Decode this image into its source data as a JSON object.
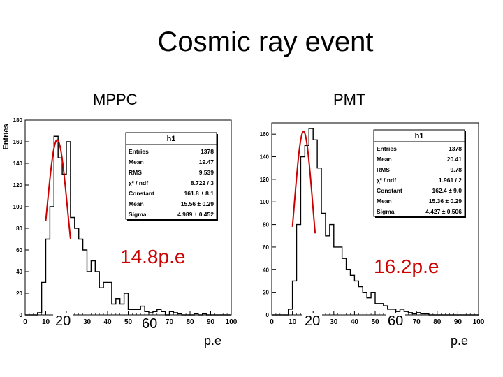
{
  "title": "Cosmic ray event",
  "panels": [
    {
      "label": "MPPC",
      "annotation": "14.8p.e",
      "unit": "p.e",
      "overlay_ticks": [
        "20",
        "60"
      ],
      "stats": {
        "name": "h1",
        "rows": [
          [
            "Entries",
            "1378"
          ],
          [
            "Mean",
            "19.47"
          ],
          [
            "RMS",
            "9.539"
          ],
          [
            "χ² / ndf",
            "8.722 / 3"
          ],
          [
            "Constant",
            "161.8 ± 8.1"
          ],
          [
            "Mean",
            "15.56 ± 0.29"
          ],
          [
            "Sigma",
            "4.989 ± 0.452"
          ]
        ]
      }
    },
    {
      "label": "PMT",
      "annotation": "16.2p.e",
      "unit": "p.e",
      "overlay_ticks": [
        "20",
        "60"
      ],
      "stats": {
        "name": "h1",
        "rows": [
          [
            "Entries",
            "1378"
          ],
          [
            "Mean",
            "20.41"
          ],
          [
            "RMS",
            "9.78"
          ],
          [
            "χ² / ndf",
            "1.961 / 2"
          ],
          [
            "Constant",
            "162.4 ± 9.0"
          ],
          [
            "Mean",
            "15.36 ± 0.29"
          ],
          [
            "Sigma",
            "4.427 ± 0.506"
          ]
        ]
      }
    }
  ],
  "chart_data": [
    {
      "type": "histogram",
      "title": "MPPC",
      "ylabel": "Entries",
      "xlim": [
        0,
        100
      ],
      "ylim": [
        0,
        180
      ],
      "bin_width": 2,
      "xticks": [
        0,
        10,
        20,
        30,
        40,
        50,
        60,
        70,
        80,
        90,
        100
      ],
      "yticks": [
        0,
        20,
        40,
        60,
        80,
        100,
        120,
        140,
        160,
        180
      ],
      "values": [
        0,
        0,
        0,
        2,
        30,
        70,
        100,
        165,
        145,
        130,
        160,
        90,
        80,
        70,
        60,
        40,
        50,
        40,
        25,
        30,
        30,
        10,
        15,
        10,
        20,
        5,
        5,
        5,
        8,
        3,
        2,
        3,
        5,
        3,
        0,
        3,
        2,
        1,
        0,
        0,
        0,
        1,
        0,
        1,
        0,
        0,
        0,
        0,
        0,
        0
      ],
      "fit": {
        "type": "gaussian",
        "constant": 161.8,
        "mean": 15.56,
        "sigma": 4.989,
        "range": [
          10,
          22
        ],
        "color": "#cc0000"
      }
    },
    {
      "type": "histogram",
      "title": "PMT",
      "ylabel": "",
      "xlim": [
        0,
        100
      ],
      "ylim": [
        0,
        170
      ],
      "bin_width": 2,
      "xticks": [
        0,
        10,
        20,
        30,
        40,
        50,
        60,
        70,
        80,
        90,
        100
      ],
      "yticks": [
        0,
        20,
        40,
        60,
        80,
        100,
        120,
        140,
        160
      ],
      "values": [
        0,
        0,
        0,
        0,
        5,
        30,
        80,
        140,
        150,
        165,
        155,
        130,
        90,
        70,
        80,
        60,
        60,
        50,
        40,
        35,
        30,
        25,
        20,
        15,
        20,
        10,
        10,
        8,
        5,
        5,
        3,
        5,
        3,
        2,
        1,
        2,
        1,
        1,
        0,
        0,
        0,
        0,
        0,
        0,
        0,
        0,
        0,
        0,
        0,
        0
      ],
      "fit": {
        "type": "gaussian",
        "constant": 162.4,
        "mean": 15.36,
        "sigma": 4.427,
        "range": [
          10,
          21
        ],
        "color": "#cc0000"
      }
    }
  ]
}
